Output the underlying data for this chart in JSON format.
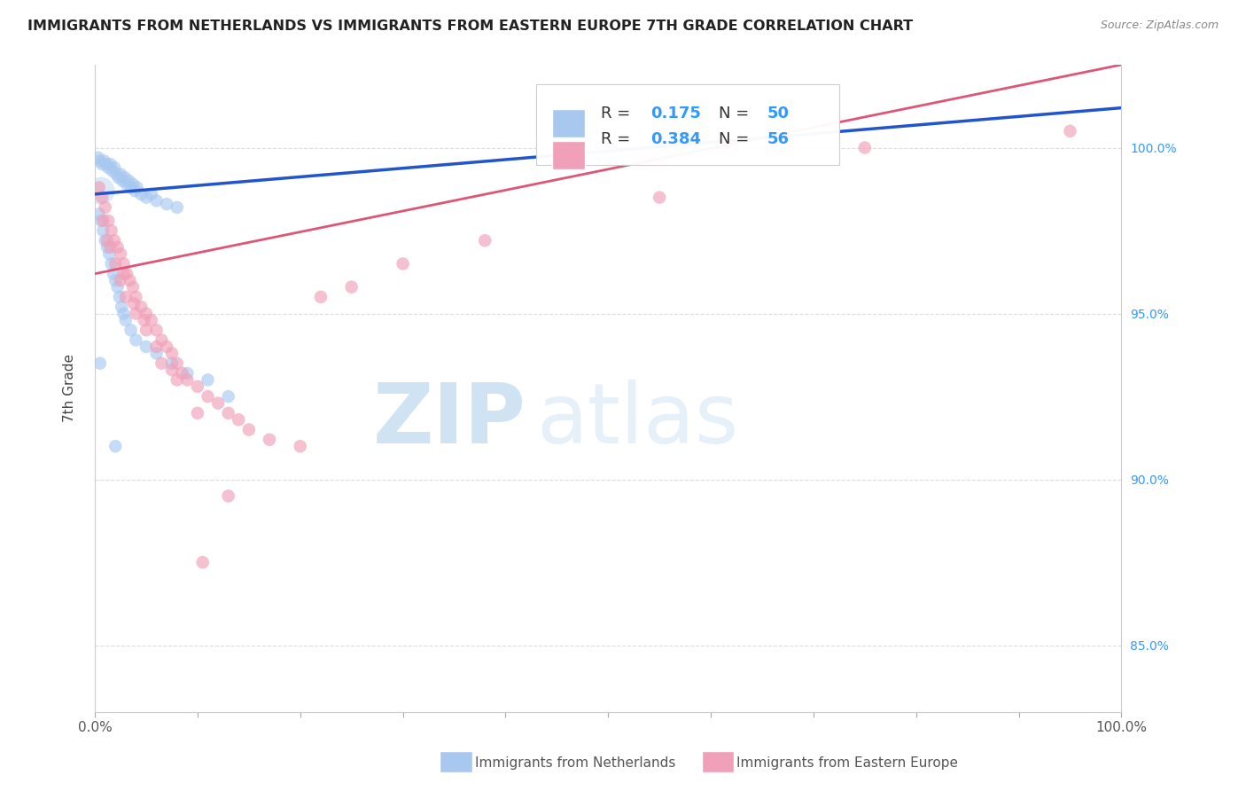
{
  "title": "IMMIGRANTS FROM NETHERLANDS VS IMMIGRANTS FROM EASTERN EUROPE 7TH GRADE CORRELATION CHART",
  "source": "Source: ZipAtlas.com",
  "ylabel": "7th Grade",
  "legend1_R": "0.175",
  "legend1_N": "50",
  "legend2_R": "0.384",
  "legend2_N": "56",
  "legend1_label": "Immigrants from Netherlands",
  "legend2_label": "Immigrants from Eastern Europe",
  "blue_color": "#a8c8f0",
  "pink_color": "#f0a0b8",
  "blue_line_color": "#2255cc",
  "pink_line_color": "#dd5577",
  "xlim": [
    0.0,
    100.0
  ],
  "ylim": [
    83.0,
    102.5
  ],
  "yticks": [
    85.0,
    90.0,
    95.0,
    100.0
  ],
  "ytick_labels": [
    "85.0%",
    "90.0%",
    "95.0%",
    "100.0%"
  ],
  "blue_trend_x": [
    0.0,
    100.0
  ],
  "blue_trend_y": [
    98.6,
    101.2
  ],
  "pink_trend_x": [
    0.0,
    100.0
  ],
  "pink_trend_y": [
    96.2,
    102.5
  ],
  "blue_dots": [
    [
      0.3,
      99.7
    ],
    [
      0.5,
      99.6
    ],
    [
      0.7,
      99.5
    ],
    [
      0.9,
      99.6
    ],
    [
      1.1,
      99.5
    ],
    [
      1.3,
      99.4
    ],
    [
      1.5,
      99.5
    ],
    [
      1.7,
      99.3
    ],
    [
      1.9,
      99.4
    ],
    [
      2.1,
      99.2
    ],
    [
      2.3,
      99.1
    ],
    [
      2.5,
      99.2
    ],
    [
      2.7,
      99.0
    ],
    [
      2.9,
      99.1
    ],
    [
      3.1,
      98.9
    ],
    [
      3.3,
      99.0
    ],
    [
      3.5,
      98.8
    ],
    [
      3.7,
      98.9
    ],
    [
      3.9,
      98.7
    ],
    [
      4.1,
      98.8
    ],
    [
      4.5,
      98.6
    ],
    [
      5.0,
      98.5
    ],
    [
      5.5,
      98.6
    ],
    [
      6.0,
      98.4
    ],
    [
      7.0,
      98.3
    ],
    [
      8.0,
      98.2
    ],
    [
      0.4,
      98.0
    ],
    [
      0.6,
      97.8
    ],
    [
      0.8,
      97.5
    ],
    [
      1.0,
      97.2
    ],
    [
      1.2,
      97.0
    ],
    [
      1.4,
      96.8
    ],
    [
      1.6,
      96.5
    ],
    [
      1.8,
      96.2
    ],
    [
      2.0,
      96.0
    ],
    [
      2.2,
      95.8
    ],
    [
      2.4,
      95.5
    ],
    [
      2.6,
      95.2
    ],
    [
      2.8,
      95.0
    ],
    [
      3.0,
      94.8
    ],
    [
      3.5,
      94.5
    ],
    [
      4.0,
      94.2
    ],
    [
      5.0,
      94.0
    ],
    [
      6.0,
      93.8
    ],
    [
      7.5,
      93.5
    ],
    [
      9.0,
      93.2
    ],
    [
      11.0,
      93.0
    ],
    [
      13.0,
      92.5
    ],
    [
      0.5,
      93.5
    ],
    [
      2.0,
      91.0
    ]
  ],
  "blue_large_dots": [
    [
      0.6,
      98.7,
      500
    ]
  ],
  "pink_dots": [
    [
      0.4,
      98.8
    ],
    [
      0.7,
      98.5
    ],
    [
      1.0,
      98.2
    ],
    [
      1.3,
      97.8
    ],
    [
      1.6,
      97.5
    ],
    [
      1.9,
      97.2
    ],
    [
      2.2,
      97.0
    ],
    [
      2.5,
      96.8
    ],
    [
      2.8,
      96.5
    ],
    [
      3.1,
      96.2
    ],
    [
      3.4,
      96.0
    ],
    [
      3.7,
      95.8
    ],
    [
      4.0,
      95.5
    ],
    [
      4.5,
      95.2
    ],
    [
      5.0,
      95.0
    ],
    [
      5.5,
      94.8
    ],
    [
      6.0,
      94.5
    ],
    [
      6.5,
      94.2
    ],
    [
      7.0,
      94.0
    ],
    [
      7.5,
      93.8
    ],
    [
      8.0,
      93.5
    ],
    [
      8.5,
      93.2
    ],
    [
      9.0,
      93.0
    ],
    [
      10.0,
      92.8
    ],
    [
      11.0,
      92.5
    ],
    [
      12.0,
      92.3
    ],
    [
      13.0,
      92.0
    ],
    [
      14.0,
      91.8
    ],
    [
      15.0,
      91.5
    ],
    [
      17.0,
      91.2
    ],
    [
      20.0,
      91.0
    ],
    [
      1.5,
      97.0
    ],
    [
      2.0,
      96.5
    ],
    [
      2.5,
      96.0
    ],
    [
      3.0,
      95.5
    ],
    [
      4.0,
      95.0
    ],
    [
      5.0,
      94.5
    ],
    [
      6.5,
      93.5
    ],
    [
      8.0,
      93.0
    ],
    [
      10.0,
      92.0
    ],
    [
      0.8,
      97.8
    ],
    [
      1.2,
      97.2
    ],
    [
      2.8,
      96.2
    ],
    [
      3.8,
      95.3
    ],
    [
      4.8,
      94.8
    ],
    [
      6.0,
      94.0
    ],
    [
      7.5,
      93.3
    ],
    [
      10.5,
      87.5
    ],
    [
      75.0,
      100.0
    ],
    [
      95.0,
      100.5
    ],
    [
      55.0,
      98.5
    ],
    [
      38.0,
      97.2
    ],
    [
      22.0,
      95.5
    ],
    [
      25.0,
      95.8
    ],
    [
      30.0,
      96.5
    ],
    [
      13.0,
      89.5
    ]
  ]
}
